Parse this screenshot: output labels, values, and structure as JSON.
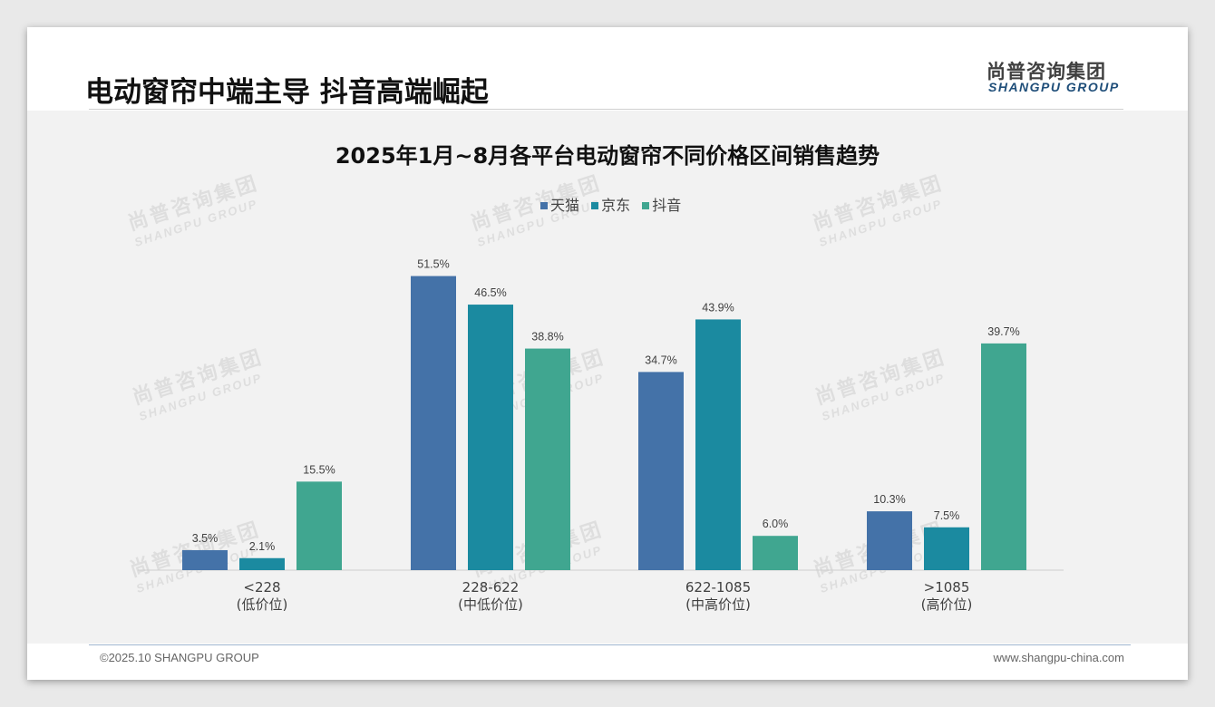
{
  "page": {
    "title": "电动窗帘中端主导 抖音高端崛起",
    "logo_cn": "尚普咨询集团",
    "logo_en": "SHANGPU GROUP",
    "copyright": "©2025.10 SHANGPU GROUP",
    "website": "www.shangpu-china.com",
    "watermark_cn": "尚普咨询集团",
    "watermark_en": "SHANGPU GROUP"
  },
  "colors": {
    "tmall": "#4472a8",
    "jd": "#1b8aa0",
    "douyin": "#40a690"
  },
  "chart_data": {
    "type": "bar",
    "title": "2025年1月~8月各平台电动窗帘不同价格区间销售趋势",
    "categories": [
      {
        "range": "<228",
        "label": "(低价位)"
      },
      {
        "range": "228-622",
        "label": "(中低价位)"
      },
      {
        "range": "622-1085",
        "label": "(中高价位)"
      },
      {
        "range": ">1085",
        "label": "(高价位)"
      }
    ],
    "series": [
      {
        "name": "天猫",
        "values": [
          3.5,
          51.5,
          34.7,
          10.3
        ]
      },
      {
        "name": "京东",
        "values": [
          2.1,
          46.5,
          43.9,
          7.5
        ]
      },
      {
        "name": "抖音",
        "values": [
          15.5,
          38.8,
          6.0,
          39.7
        ]
      }
    ],
    "unit": "%",
    "ylim": [
      0,
      55
    ],
    "legend_position": "top-center",
    "grid": false
  }
}
